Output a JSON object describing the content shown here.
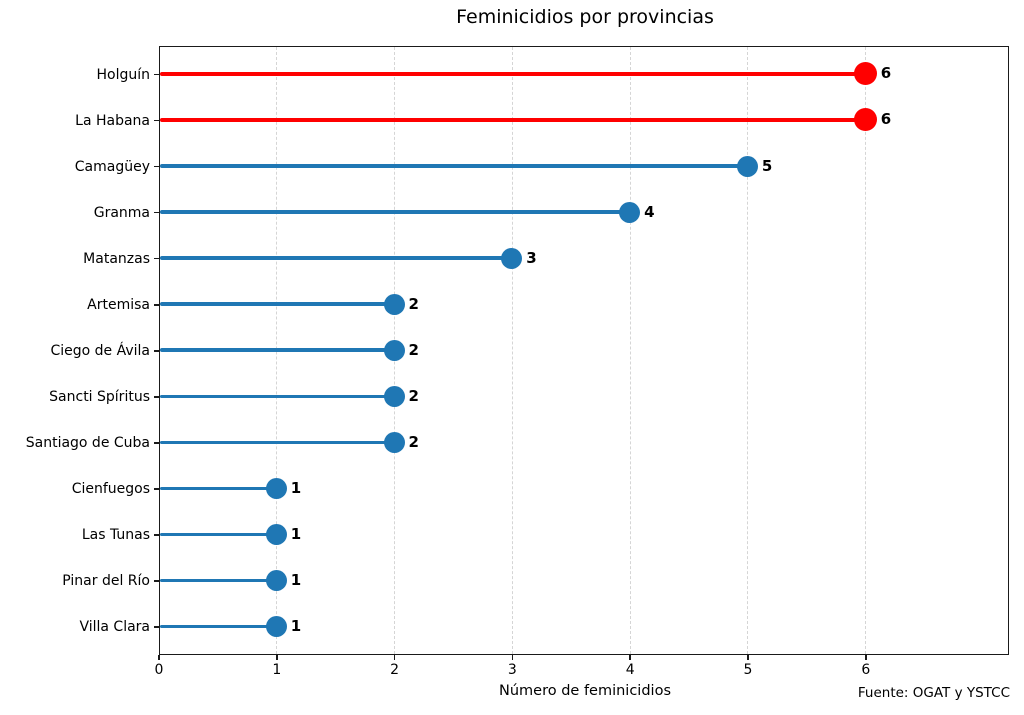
{
  "chart_data": {
    "type": "lollipop",
    "orientation": "horizontal",
    "title": "Feminicidios por provincias",
    "xlabel": "Número de feminicidios",
    "ylabel": "",
    "source": "Fuente: OGAT y YSTCC",
    "categories": [
      "Holguín",
      "La Habana",
      "Camagüey",
      "Granma",
      "Matanzas",
      "Artemisa",
      "Ciego de Ávila",
      "Sancti Spíritus",
      "Santiago de Cuba",
      "Cienfuegos",
      "Las Tunas",
      "Pinar del Río",
      "Villa Clara"
    ],
    "values": [
      6,
      6,
      5,
      4,
      3,
      2,
      2,
      2,
      2,
      1,
      1,
      1,
      1
    ],
    "highlighted": [
      true,
      true,
      false,
      false,
      false,
      false,
      false,
      false,
      false,
      false,
      false,
      false,
      false
    ],
    "xticks": [
      0,
      1,
      2,
      3,
      4,
      5,
      6
    ],
    "xlim": [
      0,
      7.2
    ],
    "grid": "vertical dashed at integer ticks",
    "legend": "none",
    "colors": {
      "normal": "#1f77b4",
      "highlight": "#ff0000",
      "grid": "#d5d5d5",
      "text": "#000000",
      "background": "#ffffff"
    }
  }
}
